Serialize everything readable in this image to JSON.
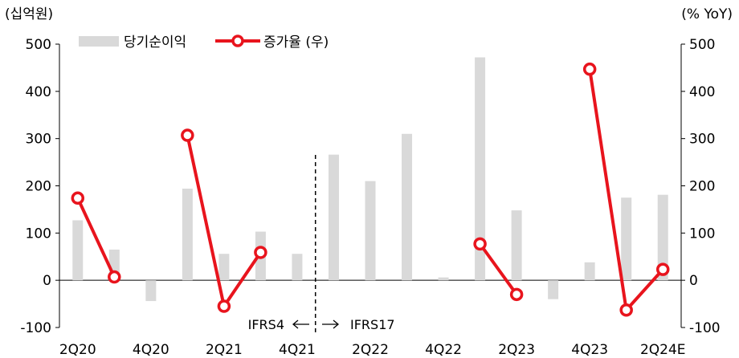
{
  "chart_data": {
    "type": "bar",
    "left_unit": "(십억원)",
    "right_unit": "(% YoY)",
    "categories": [
      "2Q20",
      "3Q20",
      "4Q20",
      "1Q21",
      "2Q21",
      "3Q21",
      "4Q21",
      "1Q22",
      "2Q22",
      "3Q22",
      "4Q22",
      "1Q23",
      "2Q23",
      "3Q23",
      "4Q23",
      "1Q24",
      "2Q24E"
    ],
    "x_tick_labels": [
      "2Q20",
      "4Q20",
      "2Q21",
      "4Q21",
      "2Q22",
      "4Q22",
      "2Q23",
      "4Q23",
      "2Q24E"
    ],
    "ylim": [
      -100,
      500
    ],
    "yticks": [
      -100,
      0,
      100,
      200,
      300,
      400,
      500
    ],
    "series": [
      {
        "name": "당기순이익",
        "type": "bar",
        "axis": "left",
        "color": "#d9d9d9",
        "values": [
          127,
          65,
          -44,
          194,
          56,
          103,
          56,
          266,
          210,
          310,
          6,
          472,
          148,
          -40,
          38,
          175,
          181
        ]
      },
      {
        "name": "증가율 (우)",
        "type": "line",
        "axis": "right",
        "color": "#e8141d",
        "segments": [
          {
            "x": [
              "2Q20",
              "3Q20"
            ],
            "y": [
              174,
              7
            ]
          },
          {
            "x": [
              "1Q21",
              "2Q21",
              "3Q21"
            ],
            "y": [
              307,
              -55,
              59
            ]
          },
          {
            "x": [
              "1Q23",
              "2Q23"
            ],
            "y": [
              77,
              -30
            ]
          },
          {
            "x": [
              "4Q23",
              "1Q24",
              "2Q24E"
            ],
            "y": [
              447,
              -63,
              23
            ]
          }
        ]
      }
    ],
    "annotation": {
      "divider_after": "4Q21",
      "left_label": "IFRS4",
      "right_label": "IFRS17"
    },
    "legend_position": "top-left"
  }
}
